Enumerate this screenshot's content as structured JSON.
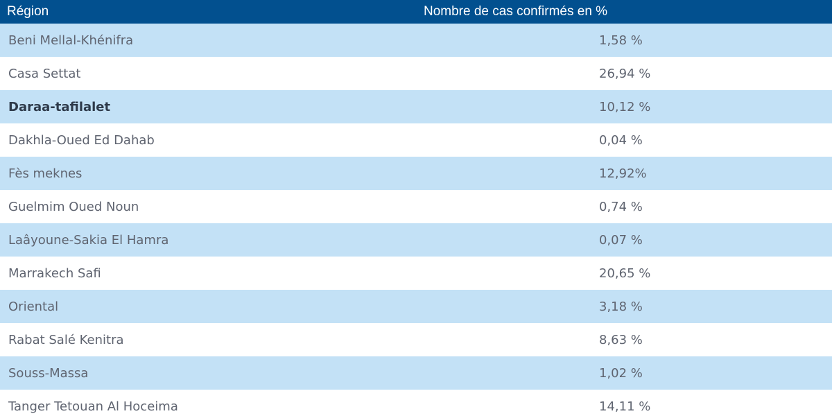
{
  "table": {
    "headers": {
      "region": "Région",
      "value": "Nombre de cas confirmés en %"
    },
    "rows": [
      {
        "region": "Beni Mellal-Khénifra",
        "value": "1,58 %"
      },
      {
        "region": "Casa Settat",
        "value": "26,94 %"
      },
      {
        "region": "Daraa-tafilalet",
        "value": "10,12 %"
      },
      {
        "region": "Dakhla-Oued Ed Dahab",
        "value": "0,04 %"
      },
      {
        "region": "Fès meknes",
        "value": "12,92%"
      },
      {
        "region": "Guelmim Oued Noun",
        "value": "0,74 %"
      },
      {
        "region": "Laâyoune-Sakia El Hamra",
        "value": "0,07 %"
      },
      {
        "region": "Marrakech Safi",
        "value": "20,65 %"
      },
      {
        "region": "Oriental",
        "value": "3,18 %"
      },
      {
        "region": "Rabat Salé Kenitra",
        "value": "8,63 %"
      },
      {
        "region": "Souss-Massa",
        "value": "1,02 %"
      },
      {
        "region": "Tanger Tetouan Al Hoceima",
        "value": "14,11 %"
      }
    ]
  },
  "colors": {
    "header_bg": "#02508f",
    "header_text": "#ffffff",
    "row_shaded": "#c3e1f6",
    "row_plain": "#ffffff",
    "body_text": "#5f6470"
  }
}
